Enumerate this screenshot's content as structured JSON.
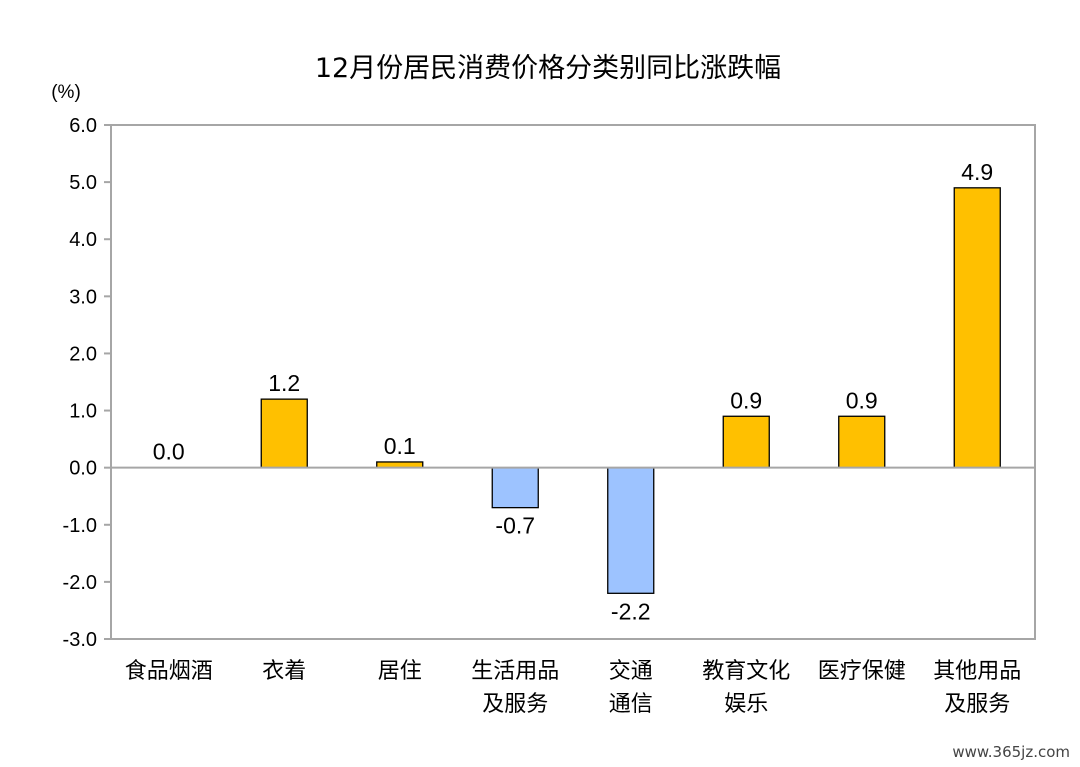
{
  "chart_data": {
    "type": "bar",
    "title": "12月份居民消费价格分类别同比涨跌幅",
    "unit_label": "(%)",
    "ylim": [
      -3.0,
      6.0
    ],
    "yticks": [
      "6.0",
      "5.0",
      "4.0",
      "3.0",
      "2.0",
      "1.0",
      "0.0",
      "-1.0",
      "-2.0",
      "-3.0"
    ],
    "ytick_values": [
      6,
      5,
      4,
      3,
      2,
      1,
      0,
      -1,
      -2,
      -3
    ],
    "categories": [
      [
        "食品烟酒"
      ],
      [
        "衣着"
      ],
      [
        "居住"
      ],
      [
        "生活用品",
        "及服务"
      ],
      [
        "交通",
        "通信"
      ],
      [
        "教育文化",
        "娱乐"
      ],
      [
        "医疗保健"
      ],
      [
        "其他用品",
        "及服务"
      ]
    ],
    "values": [
      0.0,
      1.2,
      0.1,
      -0.7,
      -2.2,
      0.9,
      0.9,
      4.9
    ],
    "data_labels": [
      "0.0",
      "1.2",
      "0.1",
      "-0.7",
      "-2.2",
      "0.9",
      "0.9",
      "4.9"
    ],
    "grid": false,
    "legend": "none",
    "colors": {
      "positive": "#FFC000",
      "negative": "#9DC3FF",
      "bar_stroke": "#000000",
      "frame": "#A6A6A6"
    }
  },
  "watermark": "www.365jz.com"
}
